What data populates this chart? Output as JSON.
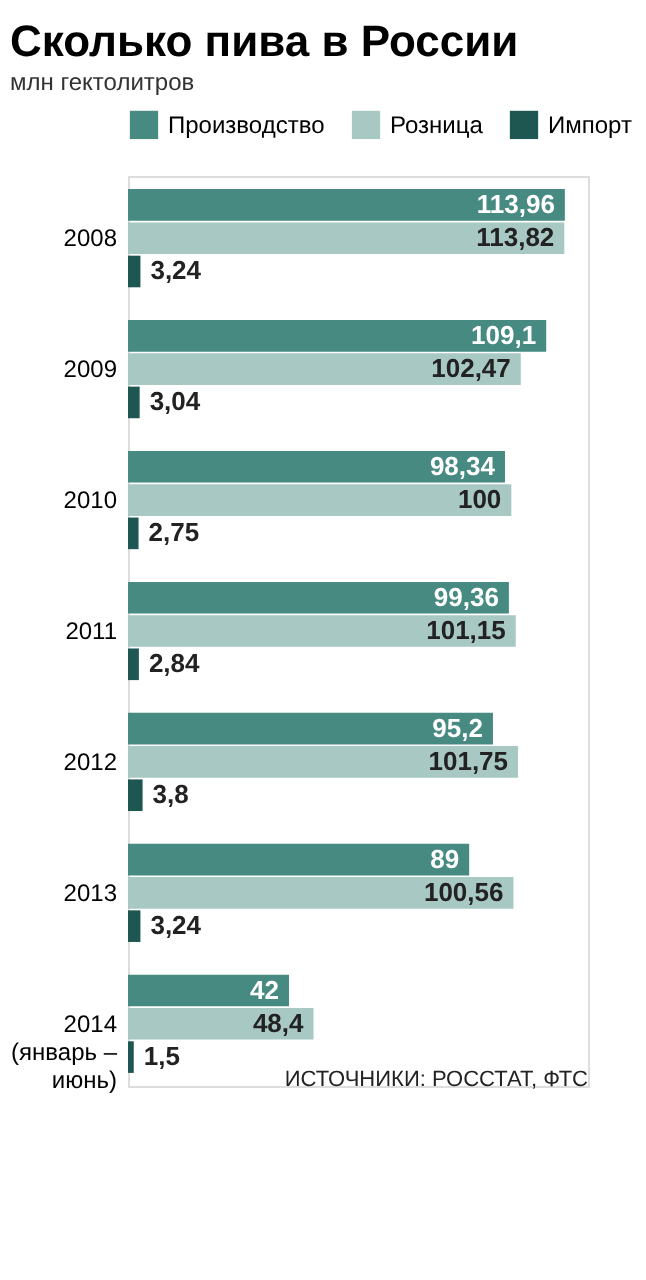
{
  "chart_data": {
    "type": "bar",
    "orientation": "horizontal",
    "title": "Сколько пива в России",
    "subtitle": "млн гектолитров",
    "categories": [
      "2008",
      "2009",
      "2010",
      "2011",
      "2012",
      "2013",
      "2014\n(январь –\nиюнь)"
    ],
    "series": [
      {
        "name": "Производство",
        "color": "#468a82",
        "values": [
          113.96,
          109.1,
          98.34,
          99.36,
          95.2,
          89,
          42
        ],
        "value_labels": [
          "113,96",
          "109,1",
          "98,34",
          "99,36",
          "95,2",
          "89",
          "42"
        ]
      },
      {
        "name": "Розница",
        "color": "#a8c8c4",
        "values": [
          113.82,
          102.47,
          100,
          101.15,
          101.75,
          100.56,
          48.4
        ],
        "value_labels": [
          "113,82",
          "102,47",
          "100",
          "101,15",
          "101,75",
          "100,56",
          "48,4"
        ]
      },
      {
        "name": "Импорт",
        "color": "#1e5652",
        "values": [
          3.24,
          3.04,
          2.75,
          2.84,
          3.8,
          3.24,
          1.5
        ],
        "value_labels": [
          "3,24",
          "3,04",
          "2,75",
          "2,84",
          "3,8",
          "3,24",
          "1,5"
        ]
      }
    ],
    "xlim": [
      0,
      120
    ],
    "legend": "top",
    "tick_labels": "y",
    "annotations": [
      "ИСТОЧНИКИ: РОССТАТ, ФТС"
    ]
  }
}
